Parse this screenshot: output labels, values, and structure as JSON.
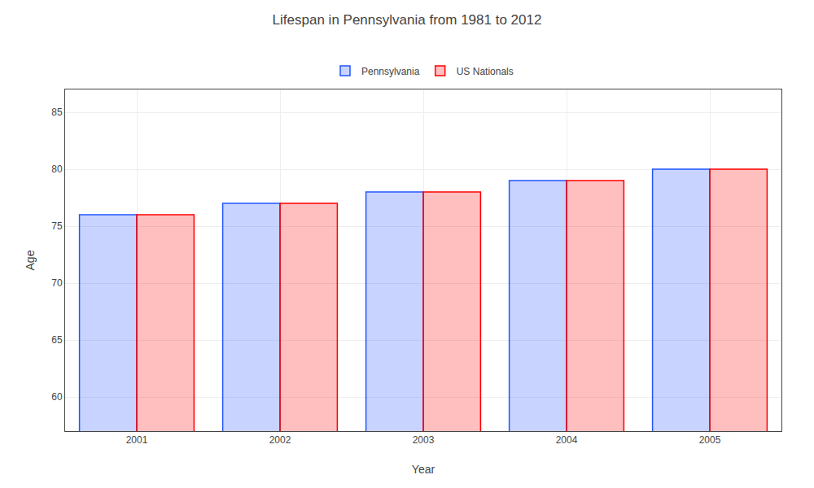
{
  "chart_data": {
    "type": "bar",
    "title": "Lifespan in Pennsylvania from 1981 to 2012",
    "x_label": "Year",
    "y_label": "Age",
    "categories": [
      "2001",
      "2002",
      "2003",
      "2004",
      "2005"
    ],
    "series": [
      {
        "name": "Pennsylvania",
        "color": "#2255ff",
        "values": [
          76,
          77,
          78,
          79,
          80
        ]
      },
      {
        "name": "US Nationals",
        "color": "#ff0000",
        "values": [
          76,
          77,
          78,
          79,
          80
        ]
      }
    ],
    "ylim": [
      57,
      87
    ],
    "yticks": [
      60,
      65,
      70,
      75,
      80,
      85
    ],
    "grid": true,
    "legend": "top"
  }
}
